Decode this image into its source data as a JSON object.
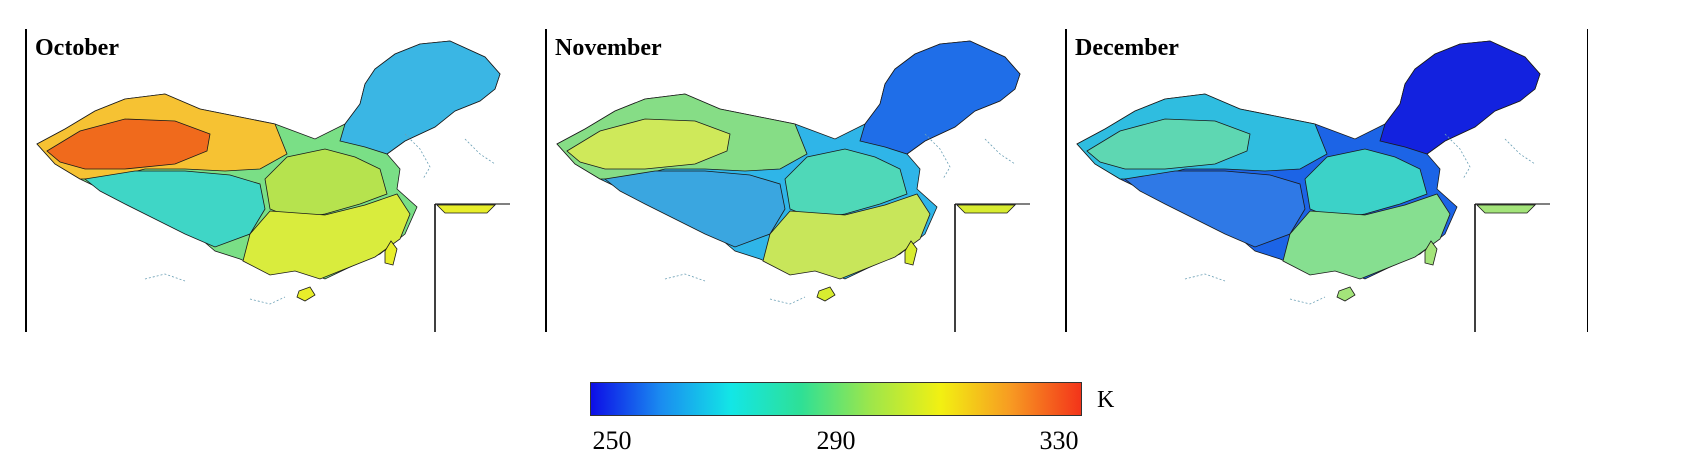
{
  "panels": [
    {
      "title": "October",
      "colors": {
        "west_basin": "#f06a1c",
        "west_plateau": "#f6c233",
        "plateau": "#3fd6c6",
        "central": "#b6e34e",
        "south": "#d9ec3d",
        "northeast": "#3ab6e4",
        "north": "#7adf86",
        "coast_islands": "#e8ee2a"
      }
    },
    {
      "title": "November",
      "colors": {
        "west_basin": "#cfe95a",
        "west_plateau": "#86dd86",
        "plateau": "#3aa6e0",
        "central": "#4fd8b8",
        "south": "#c8e65a",
        "northeast": "#1f6ee8",
        "north": "#2fb5e8",
        "coast_islands": "#d8ec30"
      }
    },
    {
      "title": "December",
      "colors": {
        "west_basin": "#5ed7b2",
        "west_plateau": "#2fbde0",
        "plateau": "#2f79e6",
        "central": "#3cd2c8",
        "south": "#86df90",
        "northeast": "#1322df",
        "north": "#1c64e6",
        "coast_islands": "#a3e47a"
      }
    }
  ],
  "legend": {
    "unit": "K",
    "ticks": [
      "250",
      "290",
      "330"
    ],
    "tick_values": [
      250,
      290,
      330
    ],
    "range": [
      250,
      330
    ],
    "gradient_stops": [
      "#0d0ee6",
      "#1a8cf0",
      "#13e6e6",
      "#2ee096",
      "#9ee64a",
      "#f2f012",
      "#f79a22",
      "#f3341a"
    ]
  }
}
